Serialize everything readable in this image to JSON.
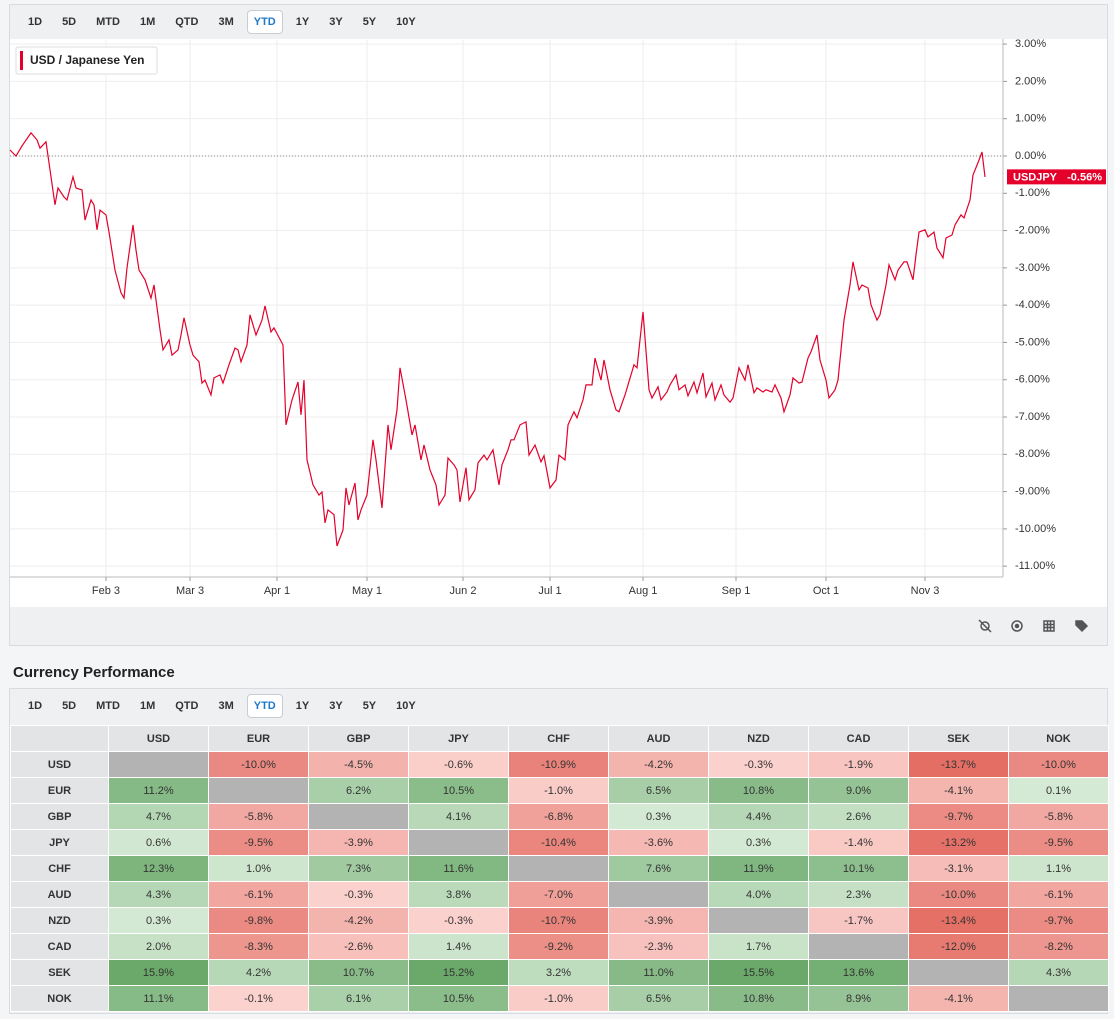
{
  "chart_toolbar": {
    "ranges": [
      "1D",
      "5D",
      "MTD",
      "1M",
      "QTD",
      "3M",
      "YTD",
      "1Y",
      "3Y",
      "5Y",
      "10Y"
    ],
    "active": "YTD"
  },
  "chart_data": {
    "type": "line",
    "x": [
      2,
      4,
      6,
      9,
      11,
      12,
      14,
      17,
      18,
      20,
      21,
      23,
      24,
      26,
      27,
      29,
      30,
      31,
      32,
      34,
      35,
      37,
      39,
      40,
      41,
      43,
      44,
      45,
      47,
      49,
      50,
      52,
      53,
      55,
      56,
      58,
      59,
      60,
      62,
      63,
      65,
      66,
      67,
      69,
      70,
      72,
      73,
      75,
      77,
      78,
      79,
      81,
      82,
      84,
      86,
      87,
      89,
      90,
      93,
      94,
      96,
      98,
      99,
      100,
      101,
      103,
      105,
      106,
      107,
      108,
      110,
      111,
      113,
      114,
      115,
      117,
      118,
      119,
      121,
      123,
      124,
      126,
      128,
      129,
      131,
      132,
      134,
      136,
      137,
      139,
      140,
      142,
      144,
      145,
      147,
      148,
      150,
      151,
      152,
      154,
      155,
      157,
      158,
      160,
      161,
      163,
      165,
      166,
      168,
      169,
      170,
      172,
      174,
      175,
      177,
      179,
      180,
      182,
      184,
      185,
      187,
      188,
      190,
      191,
      193,
      194,
      196,
      197,
      199,
      200,
      202,
      204,
      205,
      207,
      208,
      210,
      211,
      213,
      215,
      216,
      218,
      219,
      221,
      222,
      224,
      225,
      227,
      228,
      230,
      231,
      233,
      234,
      236,
      237,
      239,
      240,
      242,
      243,
      245,
      247,
      248,
      250,
      251,
      253,
      254,
      256,
      257,
      259,
      260,
      262,
      263,
      265,
      266,
      268,
      269,
      271,
      272,
      274,
      275,
      277,
      278,
      280,
      282,
      283,
      285,
      286,
      288,
      289,
      291,
      292,
      294,
      295,
      297,
      298,
      300,
      301,
      303,
      304,
      305,
      307,
      308,
      310,
      311,
      313,
      314,
      316,
      317,
      319,
      320,
      322,
      323,
      325,
      326,
      327
    ],
    "series": [
      {
        "name": "USD / Japanese Yen",
        "symbol": "USDJPY",
        "last_label": "-0.56%",
        "color": "#e4002b",
        "values": [
          0.16,
          0.0,
          0.27,
          0.62,
          0.43,
          0.21,
          0.38,
          -1.31,
          -0.86,
          -1.1,
          -1.18,
          -0.56,
          -0.86,
          -0.91,
          -1.72,
          -1.18,
          -1.31,
          -1.98,
          -1.45,
          -1.58,
          -2.04,
          -3.06,
          -3.67,
          -3.81,
          -3.0,
          -1.85,
          -2.52,
          -3.06,
          -3.32,
          -3.81,
          -3.46,
          -4.66,
          -5.2,
          -4.93,
          -5.34,
          -5.2,
          -4.8,
          -4.34,
          -5.07,
          -5.34,
          -5.52,
          -6.09,
          -6.01,
          -6.41,
          -5.95,
          -5.87,
          -6.09,
          -5.6,
          -5.15,
          -5.2,
          -5.52,
          -5.07,
          -4.26,
          -4.8,
          -4.4,
          -4.02,
          -4.72,
          -4.61,
          -5.07,
          -7.21,
          -6.54,
          -6.06,
          -6.94,
          -6.01,
          -8.15,
          -8.82,
          -9.09,
          -9.01,
          -9.84,
          -9.49,
          -9.62,
          -10.46,
          -10.03,
          -8.9,
          -9.36,
          -8.77,
          -9.76,
          -9.49,
          -9.09,
          -7.61,
          -8.15,
          -9.44,
          -7.21,
          -7.88,
          -6.81,
          -5.68,
          -6.54,
          -7.48,
          -7.21,
          -8.15,
          -7.75,
          -8.42,
          -8.82,
          -9.36,
          -9.09,
          -8.1,
          -8.28,
          -8.42,
          -9.28,
          -8.36,
          -9.22,
          -8.95,
          -8.23,
          -8.02,
          -8.15,
          -7.88,
          -8.82,
          -8.28,
          -7.88,
          -7.61,
          -7.61,
          -7.21,
          -7.13,
          -8.02,
          -7.75,
          -8.2,
          -8.04,
          -8.9,
          -8.69,
          -8.02,
          -8.15,
          -7.21,
          -6.86,
          -7.02,
          -6.54,
          -6.14,
          -6.14,
          -5.42,
          -6.01,
          -5.47,
          -6.27,
          -6.81,
          -6.86,
          -6.41,
          -6.14,
          -5.6,
          -5.68,
          -4.18,
          -6.27,
          -6.49,
          -6.19,
          -6.54,
          -6.33,
          -6.14,
          -5.87,
          -6.27,
          -6.14,
          -6.43,
          -6.06,
          -6.35,
          -5.82,
          -6.46,
          -6.09,
          -6.54,
          -6.14,
          -6.41,
          -6.6,
          -6.49,
          -5.68,
          -6.01,
          -5.6,
          -6.35,
          -6.22,
          -6.33,
          -6.27,
          -6.33,
          -6.14,
          -6.49,
          -6.86,
          -6.41,
          -5.95,
          -6.09,
          -6.06,
          -5.42,
          -5.25,
          -4.8,
          -5.47,
          -6.01,
          -6.49,
          -6.27,
          -6.01,
          -4.4,
          -3.46,
          -2.84,
          -3.59,
          -3.46,
          -3.54,
          -3.99,
          -4.4,
          -4.26,
          -3.46,
          -2.92,
          -3.32,
          -3.06,
          -2.84,
          -2.84,
          -3.32,
          -2.65,
          -2.04,
          -1.98,
          -2.17,
          -2.04,
          -2.47,
          -2.73,
          -2.2,
          -2.12,
          -1.85,
          -1.58,
          -1.66,
          -1.18,
          -0.51,
          -0.11,
          0.11,
          -0.56
        ]
      }
    ],
    "xlim": [
      2,
      333
    ],
    "xticks": [
      {
        "value": 34,
        "label": "Feb 3"
      },
      {
        "value": 62,
        "label": "Mar 3"
      },
      {
        "value": 91,
        "label": "Apr 1"
      },
      {
        "value": 121,
        "label": "May 1"
      },
      {
        "value": 153,
        "label": "Jun 2"
      },
      {
        "value": 182,
        "label": "Jul 1"
      },
      {
        "value": 213,
        "label": "Aug 1"
      },
      {
        "value": 244,
        "label": "Sep 1"
      },
      {
        "value": 274,
        "label": "Oct 1"
      },
      {
        "value": 307,
        "label": "Nov 3"
      }
    ],
    "ylim": [
      -11.29,
      3.11
    ],
    "yticks": [
      {
        "value": 3,
        "label": "3.00%"
      },
      {
        "value": 2,
        "label": "2.00%"
      },
      {
        "value": 1,
        "label": "1.00%"
      },
      {
        "value": 0,
        "label": "0.00%"
      },
      {
        "value": -1,
        "label": "-1.00%"
      },
      {
        "value": -2,
        "label": "-2.00%"
      },
      {
        "value": -3,
        "label": "-3.00%"
      },
      {
        "value": -4,
        "label": "-4.00%"
      },
      {
        "value": -5,
        "label": "-5.00%"
      },
      {
        "value": -6,
        "label": "-6.00%"
      },
      {
        "value": -7,
        "label": "-7.00%"
      },
      {
        "value": -8,
        "label": "-8.00%"
      },
      {
        "value": -9,
        "label": "-9.00%"
      },
      {
        "value": -10,
        "label": "-10.00%"
      },
      {
        "value": -11,
        "label": "-11.00%"
      }
    ],
    "grid": true,
    "zero_line": true
  },
  "performance": {
    "title": "Currency Performance",
    "toolbar": {
      "ranges": [
        "1D",
        "5D",
        "MTD",
        "1M",
        "QTD",
        "3M",
        "YTD",
        "1Y",
        "3Y",
        "5Y",
        "10Y"
      ],
      "active": "YTD"
    },
    "columns": [
      "USD",
      "EUR",
      "GBP",
      "JPY",
      "CHF",
      "AUD",
      "NZD",
      "CAD",
      "SEK",
      "NOK"
    ],
    "color_scale": {
      "negative": [
        "#fbd3cf",
        "#e2645a"
      ],
      "positive": [
        "#d5ead5",
        "#6aa96a"
      ],
      "max": 15,
      "empty": "#b3b3b3"
    },
    "rows": [
      {
        "name": "USD",
        "values": [
          null,
          -10.0,
          -4.5,
          -0.6,
          -10.9,
          -4.2,
          -0.3,
          -1.9,
          -13.7,
          -10.0
        ],
        "value_labels": [
          null,
          "-10.0%",
          "-4.5%",
          "-0.6%",
          "-10.9%",
          "-4.2%",
          "-0.3%",
          "-1.9%",
          "-13.7%",
          "-10.0%"
        ]
      },
      {
        "name": "EUR",
        "values": [
          11.2,
          null,
          6.2,
          10.5,
          -1.0,
          6.5,
          10.8,
          9.0,
          -4.1,
          0.1
        ],
        "value_labels": [
          "11.2%",
          null,
          "6.2%",
          "10.5%",
          "-1.0%",
          "6.5%",
          "10.8%",
          "9.0%",
          "-4.1%",
          "0.1%"
        ]
      },
      {
        "name": "GBP",
        "values": [
          4.7,
          -5.8,
          null,
          4.1,
          -6.8,
          0.3,
          4.4,
          2.6,
          -9.7,
          -5.8
        ],
        "value_labels": [
          "4.7%",
          "-5.8%",
          null,
          "4.1%",
          "-6.8%",
          "0.3%",
          "4.4%",
          "2.6%",
          "-9.7%",
          "-5.8%"
        ]
      },
      {
        "name": "JPY",
        "values": [
          0.6,
          -9.5,
          -3.9,
          null,
          -10.4,
          -3.6,
          0.3,
          -1.4,
          -13.2,
          -9.5
        ],
        "value_labels": [
          "0.6%",
          "-9.5%",
          "-3.9%",
          null,
          "-10.4%",
          "-3.6%",
          "0.3%",
          "-1.4%",
          "-13.2%",
          "-9.5%"
        ]
      },
      {
        "name": "CHF",
        "values": [
          12.3,
          1.0,
          7.3,
          11.6,
          null,
          7.6,
          11.9,
          10.1,
          -3.1,
          1.1
        ],
        "value_labels": [
          "12.3%",
          "1.0%",
          "7.3%",
          "11.6%",
          null,
          "7.6%",
          "11.9%",
          "10.1%",
          "-3.1%",
          "1.1%"
        ]
      },
      {
        "name": "AUD",
        "values": [
          4.3,
          -6.1,
          -0.3,
          3.8,
          -7.0,
          null,
          4.0,
          2.3,
          -10.0,
          -6.1
        ],
        "value_labels": [
          "4.3%",
          "-6.1%",
          "-0.3%",
          "3.8%",
          "-7.0%",
          null,
          "4.0%",
          "2.3%",
          "-10.0%",
          "-6.1%"
        ]
      },
      {
        "name": "NZD",
        "values": [
          0.3,
          -9.8,
          -4.2,
          -0.3,
          -10.7,
          -3.9,
          null,
          -1.7,
          -13.4,
          -9.7
        ],
        "value_labels": [
          "0.3%",
          "-9.8%",
          "-4.2%",
          "-0.3%",
          "-10.7%",
          "-3.9%",
          null,
          "-1.7%",
          "-13.4%",
          "-9.7%"
        ]
      },
      {
        "name": "CAD",
        "values": [
          2.0,
          -8.3,
          -2.6,
          1.4,
          -9.2,
          -2.3,
          1.7,
          null,
          -12.0,
          -8.2
        ],
        "value_labels": [
          "2.0%",
          "-8.3%",
          "-2.6%",
          "1.4%",
          "-9.2%",
          "-2.3%",
          "1.7%",
          null,
          "-12.0%",
          "-8.2%"
        ]
      },
      {
        "name": "SEK",
        "values": [
          15.9,
          4.2,
          10.7,
          15.2,
          3.2,
          11.0,
          15.5,
          13.6,
          null,
          4.3
        ],
        "value_labels": [
          "15.9%",
          "4.2%",
          "10.7%",
          "15.2%",
          "3.2%",
          "11.0%",
          "15.5%",
          "13.6%",
          null,
          "4.3%"
        ]
      },
      {
        "name": "NOK",
        "values": [
          11.1,
          -0.1,
          6.1,
          10.5,
          -1.0,
          6.5,
          10.8,
          8.9,
          -4.1,
          null
        ],
        "value_labels": [
          "11.1%",
          "-0.1%",
          "6.1%",
          "10.5%",
          "-1.0%",
          "6.5%",
          "10.8%",
          "8.9%",
          "-4.1%",
          null
        ]
      }
    ]
  }
}
